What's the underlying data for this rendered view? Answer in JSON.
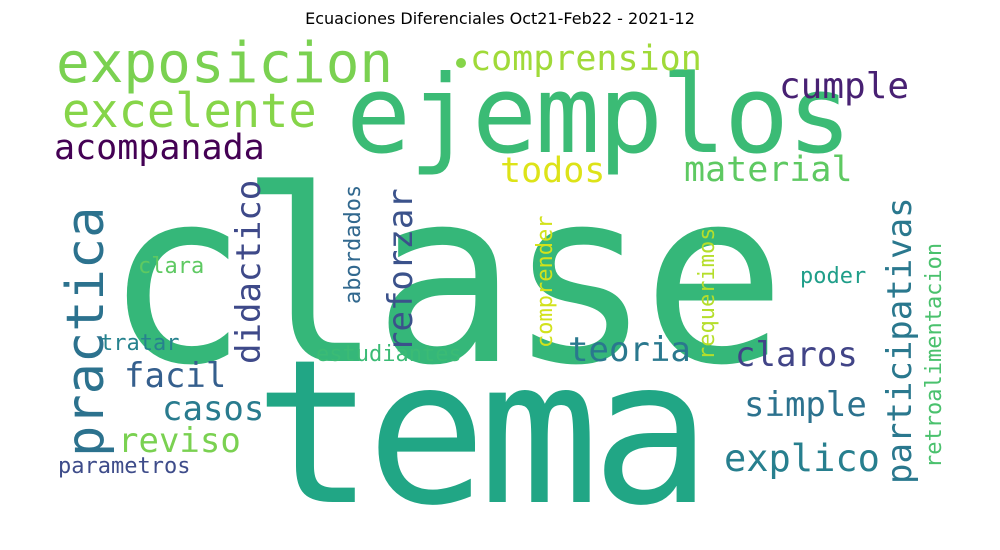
{
  "title": "Ecuaciones Diferenciales Oct21-Feb22 - 2021-12",
  "words": [
    {
      "id": "clase",
      "text": "clase",
      "color": "#35b779"
    },
    {
      "id": "tema",
      "text": "tema",
      "color": "#21a685"
    },
    {
      "id": "ejemplos",
      "text": "ejemplos",
      "color": "#3bbb75"
    },
    {
      "id": "exposicion",
      "text": "exposicion",
      "color": "#7ad151"
    },
    {
      "id": "excelente",
      "text": "excelente",
      "color": "#86d549"
    },
    {
      "id": "acompanada",
      "text": "acompanada",
      "color": "#440154"
    },
    {
      "id": "comprension",
      "text": "comprension",
      "color": "#a0da39"
    },
    {
      "id": "cumple",
      "text": "cumple",
      "color": "#482173"
    },
    {
      "id": "todos",
      "text": "todos",
      "color": "#dde318"
    },
    {
      "id": "material",
      "text": "material",
      "color": "#5ec962"
    },
    {
      "id": "practica",
      "text": "practica",
      "color": "#2c728e"
    },
    {
      "id": "didactico",
      "text": "didactico",
      "color": "#3e4989"
    },
    {
      "id": "clara",
      "text": "clara",
      "color": "#5ec962"
    },
    {
      "id": "abordados",
      "text": "abordados",
      "color": "#31688e"
    },
    {
      "id": "reforzar",
      "text": "reforzar",
      "color": "#3b528b"
    },
    {
      "id": "comprender",
      "text": "comprender",
      "color": "#d2e21b"
    },
    {
      "id": "requerimos",
      "text": "requerimos",
      "color": "#b5de2b"
    },
    {
      "id": "participativas",
      "text": "participativas",
      "color": "#2a788e"
    },
    {
      "id": "retroalimentacion",
      "text": "retroalimentacion",
      "color": "#4ac16d"
    },
    {
      "id": "poder",
      "text": "poder",
      "color": "#1f9e89"
    },
    {
      "id": "tratar",
      "text": "tratar",
      "color": "#26828e"
    },
    {
      "id": "estudiantes",
      "text": "estudiantes",
      "color": "#3bbb75"
    },
    {
      "id": "teoria",
      "text": "teoria",
      "color": "#2a788e"
    },
    {
      "id": "claros",
      "text": "claros",
      "color": "#414487"
    },
    {
      "id": "facil",
      "text": "facil",
      "color": "#355f8d"
    },
    {
      "id": "casos",
      "text": "casos",
      "color": "#297b8e"
    },
    {
      "id": "simple",
      "text": "simple",
      "color": "#2c728e"
    },
    {
      "id": "reviso",
      "text": "reviso",
      "color": "#7ad151"
    },
    {
      "id": "explico",
      "text": "explico",
      "color": "#277f8e"
    },
    {
      "id": "parametros",
      "text": "parametros",
      "color": "#3e4c8a"
    }
  ]
}
